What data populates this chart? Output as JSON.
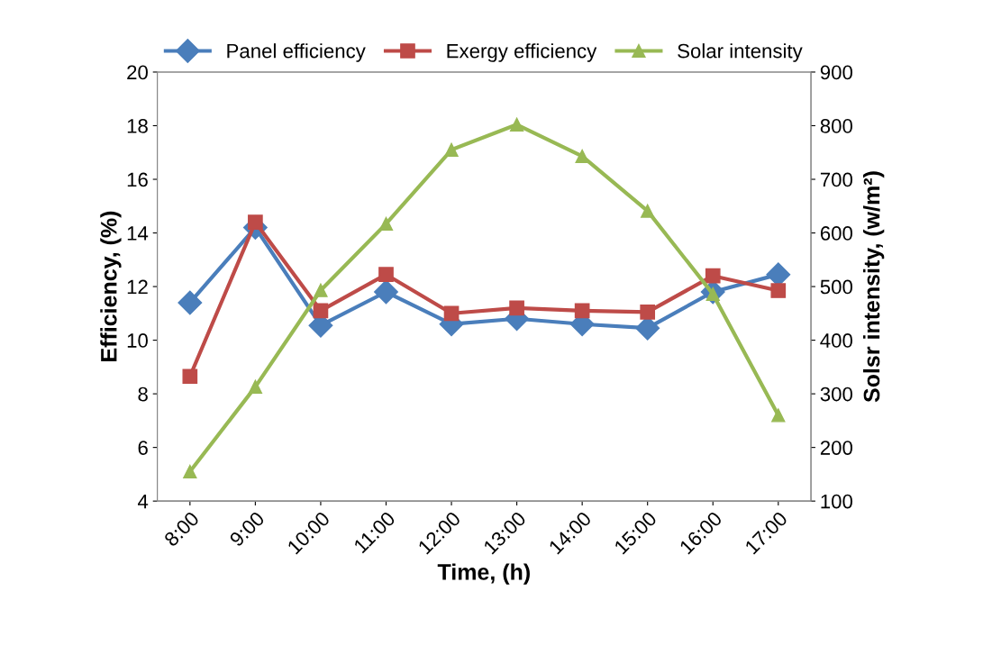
{
  "chart_data": {
    "type": "line",
    "xlabel": "Time, (h)",
    "ylabel": "Efficiency, (%)",
    "y2label": "Solsr intensity, (w/m²)",
    "categories": [
      "8:00",
      "9:00",
      "10:00",
      "11:00",
      "12:00",
      "13:00",
      "14:00",
      "15:00",
      "16:00",
      "17:00"
    ],
    "series": [
      {
        "name": "Panel efficiency",
        "color": "#4a7ebb",
        "marker": "diamond",
        "values": [
          11.4,
          14.2,
          10.55,
          11.8,
          10.6,
          10.8,
          10.6,
          10.45,
          11.8,
          12.45
        ]
      },
      {
        "name": "Exergy efficiency",
        "color": "#be4b48",
        "marker": "square",
        "values": [
          8.65,
          14.4,
          11.1,
          12.45,
          11.0,
          11.2,
          11.1,
          11.05,
          12.4,
          11.85
        ]
      },
      {
        "name": "Solar intensity",
        "color": "#98b954",
        "marker": "triangle",
        "axis": "y2",
        "values": [
          155,
          313,
          493,
          617,
          755,
          802,
          743,
          641,
          486,
          260
        ]
      }
    ],
    "ylim": [
      4,
      20
    ],
    "yticks": [
      4,
      6,
      8,
      10,
      12,
      14,
      16,
      18,
      20
    ],
    "y2lim": [
      100,
      900
    ],
    "y2ticks": [
      100,
      200,
      300,
      400,
      500,
      600,
      700,
      800,
      900
    ],
    "grid": false,
    "legend": "top",
    "line_style": "solid"
  }
}
